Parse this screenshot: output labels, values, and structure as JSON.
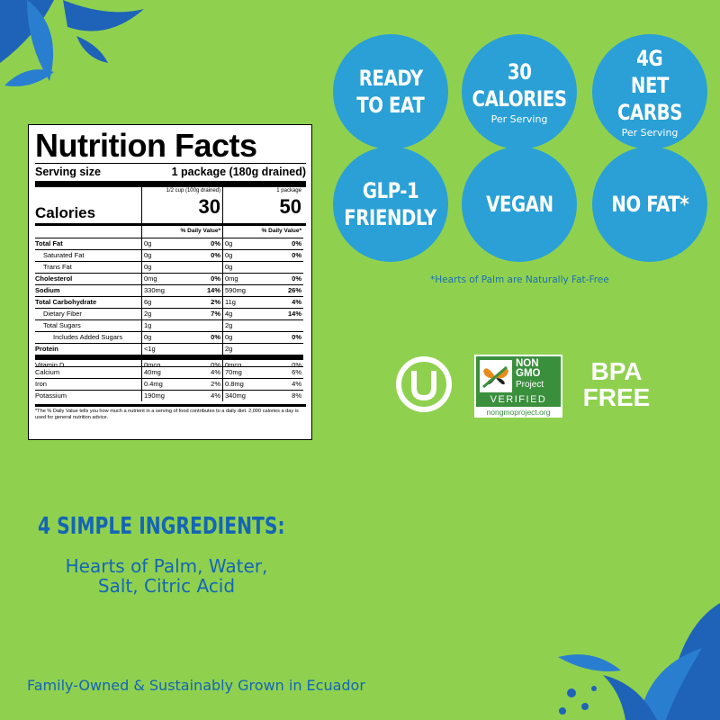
{
  "colors": {
    "background": "#8fd14f",
    "circle": "#2aa0d6",
    "brand_blue": "#1565b5",
    "leaf_blue": "#1e63b8"
  },
  "nutrition": {
    "title": "Nutrition Facts",
    "serving_label": "Serving size",
    "serving_value": "1 package (180g drained)",
    "calories_label": "Calories",
    "col1_head": "1/2 cup (100g drained)",
    "col2_head": "1 package",
    "calories_col1": "30",
    "calories_col2": "50",
    "dv_head": "% Daily Value*",
    "rows": [
      {
        "name": "Total Fat",
        "a": "0g",
        "ap": "0%",
        "b": "0g",
        "bp": "0%"
      },
      {
        "name": "Saturated Fat",
        "a": "0g",
        "ap": "0%",
        "b": "0g",
        "bp": "0%"
      },
      {
        "name": "Trans Fat",
        "a": "0g",
        "ap": "",
        "b": "0g",
        "bp": ""
      },
      {
        "name": "Cholesterol",
        "a": "0mg",
        "ap": "0%",
        "b": "0mg",
        "bp": "0%"
      },
      {
        "name": "Sodium",
        "a": "330mg",
        "ap": "14%",
        "b": "590mg",
        "bp": "26%"
      },
      {
        "name": "Total Carbohydrate",
        "a": "6g",
        "ap": "2%",
        "b": "11g",
        "bp": "4%"
      },
      {
        "name": "Dietary Fiber",
        "a": "2g",
        "ap": "7%",
        "b": "4g",
        "bp": "14%"
      },
      {
        "name": "Total Sugars",
        "a": "1g",
        "ap": "",
        "b": "2g",
        "bp": ""
      },
      {
        "name": "Includes Added Sugars",
        "a": "0g",
        "ap": "0%",
        "b": "0g",
        "bp": "0%"
      },
      {
        "name": "Protein",
        "a": "<1g",
        "ap": "",
        "b": "2g",
        "bp": ""
      },
      {
        "name": "Vitamin D",
        "a": "0mcg",
        "ap": "0%",
        "b": "0mcg",
        "bp": "0%"
      },
      {
        "name": "Calcium",
        "a": "40mg",
        "ap": "4%",
        "b": "70mg",
        "bp": "6%"
      },
      {
        "name": "Iron",
        "a": "0.4mg",
        "ap": "2%",
        "b": "0.8mg",
        "bp": "4%"
      },
      {
        "name": "Potassium",
        "a": "190mg",
        "ap": "4%",
        "b": "340mg",
        "bp": "8%"
      }
    ],
    "footnote": "*The % Daily Value tells you how much a nutrient in a serving of food contributes to a daily diet. 2,000 calories a day is used for general nutrition advice."
  },
  "badges": {
    "ready": {
      "line1": "READY",
      "line2": "TO EAT"
    },
    "calories": {
      "line1": "30",
      "line2": "CALORIES",
      "sub": "Per Serving"
    },
    "carbs": {
      "line1": "4G",
      "line2": "NET CARBS",
      "sub": "Per Serving"
    },
    "glp": {
      "line1": "GLP-1",
      "line2": "FRIENDLY"
    },
    "vegan": {
      "line1": "VEGAN"
    },
    "nofat": {
      "line1": "NO FAT*"
    }
  },
  "fat_note": "*Hearts of  Palm are Naturally Fat-Free",
  "certs": {
    "ng_top1": "NON",
    "ng_top2": "GMO",
    "ng_project": "Project",
    "ng_verified": "VERIFIED",
    "ng_url": "nongmoproject.org",
    "bpa1": "BPA",
    "bpa2": "FREE"
  },
  "ingredients": {
    "title": "4 SIMPLE INGREDIENTS:",
    "line1": "Hearts of Palm, Water,",
    "line2": "Salt, Citric Acid"
  },
  "footer": "Family-Owned & Sustainably Grown in Ecuador"
}
